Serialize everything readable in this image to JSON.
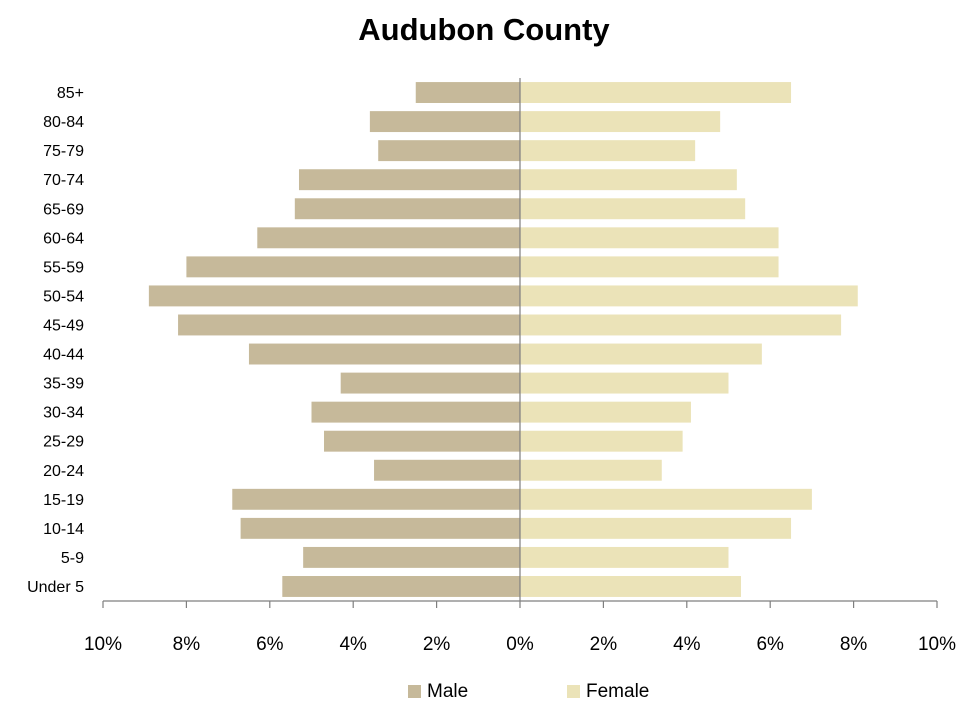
{
  "chart_data": {
    "type": "bar",
    "orientation": "horizontal-population-pyramid",
    "title": "Audubon County",
    "categories": [
      "Under 5",
      "5-9",
      "10-14",
      "15-19",
      "20-24",
      "25-29",
      "30-34",
      "35-39",
      "40-44",
      "45-49",
      "50-54",
      "55-59",
      "60-64",
      "65-69",
      "70-74",
      "75-79",
      "80-84",
      "85+"
    ],
    "series": [
      {
        "name": "Male",
        "color": "#c6b99a",
        "values": [
          5.7,
          5.2,
          6.7,
          6.9,
          3.5,
          4.7,
          5.0,
          4.3,
          6.5,
          8.2,
          8.9,
          8.0,
          6.3,
          5.4,
          5.3,
          3.4,
          3.6,
          2.5
        ]
      },
      {
        "name": "Female",
        "color": "#ebe3b8",
        "values": [
          5.3,
          5.0,
          6.5,
          7.0,
          3.4,
          3.9,
          4.1,
          5.0,
          5.8,
          7.7,
          8.1,
          6.2,
          6.2,
          5.4,
          5.2,
          4.2,
          4.8,
          6.5
        ]
      }
    ],
    "xlim": [
      -10,
      10
    ],
    "x_ticks": [
      -10,
      -8,
      -6,
      -4,
      -2,
      0,
      2,
      4,
      6,
      8,
      10
    ],
    "x_tick_labels": [
      "10%",
      "8%",
      "6%",
      "4%",
      "2%",
      "0%",
      "2%",
      "4%",
      "6%",
      "8%",
      "10%"
    ],
    "xlabel": "",
    "ylabel": "",
    "grid": false,
    "legend_position": "bottom"
  }
}
